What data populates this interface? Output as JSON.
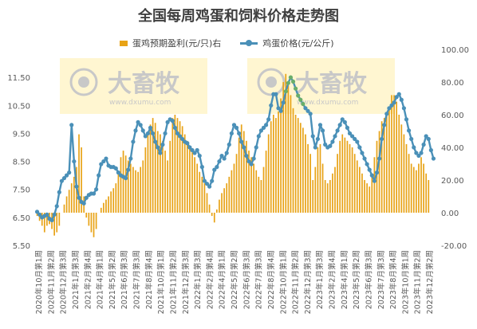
{
  "title": "全国每周鸡蛋和饲料价格走势图",
  "legend": {
    "bar_label": "蛋鸡预期盈利(元/只)右",
    "line_label": "鸡蛋价格(元/公斤)"
  },
  "watermark": {
    "text": "大畜牧",
    "url_text": "www.dxumu.com"
  },
  "colors": {
    "bar": "#E8A317",
    "line": "#4A90B8",
    "marker": "#4A90B8",
    "highlight": "#6AAE6A"
  },
  "chart_data": {
    "type": "bar+line",
    "left_axis": {
      "min": 5.5,
      "max": 12.5,
      "ticks": [
        5.5,
        6.5,
        7.5,
        8.5,
        9.5,
        10.5,
        11.5
      ],
      "tick_labels": [
        "5.50",
        "6.50",
        "7.50",
        "8.50",
        "9.50",
        "10.50",
        "11.50"
      ]
    },
    "right_axis": {
      "min": -20,
      "max": 100,
      "ticks": [
        -20,
        0,
        20,
        40,
        60,
        80,
        100
      ],
      "tick_labels": [
        "-20.00",
        "0.00",
        "20.00",
        "40.00",
        "60.00",
        "80.00",
        "100.00"
      ]
    },
    "x_tick_labels": [
      "2020年10月第1周",
      "2020年11月第2周",
      "2020年12月第3周",
      "2021年1月第3周",
      "2021年2月第4周",
      "2021年4月第1周",
      "2021年5月第2周",
      "2021年6月第3周",
      "2021年7月第3周",
      "2021年8月第4周",
      "2021年10月第1周",
      "2021年11月第2周",
      "2021年12月第3周",
      "2022年1月第3周",
      "2022年2月第4周",
      "2022年4月第1周",
      "2022年5月第2周",
      "2022年6月第3周",
      "2022年7月第3周",
      "2022年8月第4周",
      "2022年10月第1周",
      "2022年11月第2周",
      "2022年12月第3周",
      "2023年1月第3周",
      "2023年2月第4周",
      "2023年4月第1周",
      "2023年5月第2周",
      "2023年6月第3周",
      "2023年7月第3周",
      "2023年8月第4周",
      "2023年10月第1周",
      "2023年11月第2周",
      "2023年12月第2周"
    ],
    "series": [
      {
        "name": "蛋鸡预期盈利(元/只)右",
        "axis": "right",
        "kind": "bar",
        "values": [
          -2,
          -5,
          -8,
          -12,
          -8,
          -7,
          -10,
          -14,
          -12,
          -8,
          0,
          5,
          10,
          14,
          18,
          22,
          28,
          48,
          40,
          10,
          -3,
          -8,
          -12,
          -15,
          -10,
          0,
          3,
          6,
          8,
          10,
          13,
          15,
          18,
          24,
          34,
          38,
          35,
          32,
          30,
          28,
          26,
          25,
          28,
          32,
          40,
          48,
          54,
          58,
          55,
          50,
          48,
          44,
          38,
          32,
          44,
          58,
          60,
          58,
          56,
          53,
          48,
          44,
          40,
          37,
          34,
          30,
          25,
          22,
          18,
          12,
          5,
          -2,
          -6,
          2,
          8,
          12,
          15,
          18,
          22,
          26,
          30,
          36,
          46,
          54,
          50,
          44,
          38,
          34,
          30,
          26,
          22,
          20,
          28,
          38,
          48,
          56,
          60,
          58,
          62,
          70,
          80,
          85,
          78,
          72,
          64,
          60,
          58,
          55,
          52,
          48,
          42,
          36,
          20,
          28,
          40,
          42,
          30,
          20,
          18,
          20,
          24,
          28,
          36,
          44,
          48,
          46,
          44,
          42,
          40,
          36,
          32,
          28,
          24,
          20,
          18,
          16,
          24,
          34,
          44,
          50,
          56,
          58,
          60,
          64,
          72,
          72,
          68,
          60,
          54,
          48,
          42,
          36,
          30,
          28,
          26,
          30,
          34,
          30,
          24,
          20
        ]
      },
      {
        "name": "鸡蛋价格(元/公斤)",
        "axis": "left",
        "kind": "line",
        "values": [
          6.7,
          6.6,
          6.5,
          6.55,
          6.6,
          6.45,
          6.4,
          6.6,
          6.9,
          7.4,
          7.8,
          7.9,
          8.0,
          8.1,
          9.8,
          8.5,
          7.6,
          7.2,
          7.05,
          7.0,
          7.2,
          7.3,
          7.35,
          7.35,
          7.5,
          8.0,
          8.4,
          8.5,
          8.6,
          8.35,
          8.3,
          8.3,
          8.25,
          8.1,
          8.0,
          7.95,
          7.9,
          8.2,
          8.6,
          9.2,
          9.6,
          9.9,
          9.8,
          9.6,
          9.4,
          9.5,
          9.7,
          9.5,
          9.2,
          9.0,
          8.8,
          9.1,
          9.5,
          9.9,
          10.0,
          9.95,
          9.7,
          9.5,
          9.4,
          9.3,
          9.2,
          9.15,
          9.0,
          8.9,
          8.8,
          8.9,
          8.7,
          8.3,
          7.8,
          7.7,
          7.6,
          7.8,
          8.2,
          8.3,
          8.5,
          8.7,
          8.6,
          8.8,
          9.1,
          9.5,
          9.8,
          9.7,
          9.5,
          9.2,
          9.0,
          8.7,
          8.5,
          8.4,
          8.6,
          9.0,
          9.4,
          9.6,
          9.7,
          9.8,
          10.0,
          10.5,
          10.9,
          10.9,
          10.4,
          10.3,
          10.6,
          11.0,
          11.3,
          11.5,
          11.35,
          11.1,
          10.85,
          10.7,
          10.55,
          10.4,
          10.3,
          10.2,
          9.4,
          9.0,
          9.3,
          9.8,
          9.6,
          9.1,
          9.0,
          9.05,
          9.2,
          9.4,
          9.6,
          9.8,
          10.0,
          9.9,
          9.7,
          9.5,
          9.4,
          9.3,
          9.2,
          9.0,
          8.8,
          8.6,
          8.4,
          8.2,
          8.0,
          7.8,
          8.1,
          8.6,
          9.3,
          9.8,
          10.2,
          10.4,
          10.5,
          10.6,
          10.8,
          10.9,
          10.7,
          10.4,
          10.0,
          9.6,
          9.3,
          9.0,
          8.8,
          8.7,
          8.8,
          9.1,
          9.4,
          9.3,
          8.9,
          8.6
        ]
      }
    ],
    "highlight_points": [
      [
        101,
        11.0
      ],
      [
        102,
        11.3
      ],
      [
        103,
        11.5
      ],
      [
        104,
        11.35
      ],
      [
        105,
        11.1
      ],
      [
        106,
        10.85
      ],
      [
        107,
        10.7
      ],
      [
        108,
        10.55
      ]
    ],
    "grid": false,
    "legend_position": "top"
  }
}
